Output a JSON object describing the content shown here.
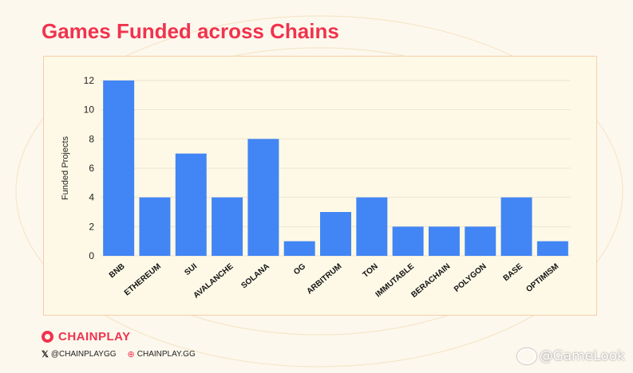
{
  "title": "Games Funded across Chains",
  "brand": {
    "name": "CHAINPLAY",
    "twitter": "@CHAINPLAYGG",
    "website": "CHAINPLAY.GG"
  },
  "watermark": "@GameLook",
  "colors": {
    "bar": "#4285f4",
    "title": "#f0334d",
    "grid": "#ece4d2",
    "frame": "#f4cfa6"
  },
  "chart_data": {
    "type": "bar",
    "categories": [
      "BNB",
      "ETHEREUM",
      "SUI",
      "AVALANCHE",
      "SOLANA",
      "OG",
      "ARBITRUM",
      "TON",
      "IMMUTABLE",
      "BERACHAIN",
      "POLYGON",
      "BASE",
      "OPTIMISM"
    ],
    "values": [
      12,
      4,
      7,
      4,
      8,
      1,
      3,
      4,
      2,
      2,
      2,
      4,
      1
    ],
    "ylabel": "Funded Projects",
    "ylim": [
      0,
      12
    ],
    "yticks": [
      0,
      2,
      4,
      6,
      8,
      10,
      12
    ],
    "grid": true
  }
}
